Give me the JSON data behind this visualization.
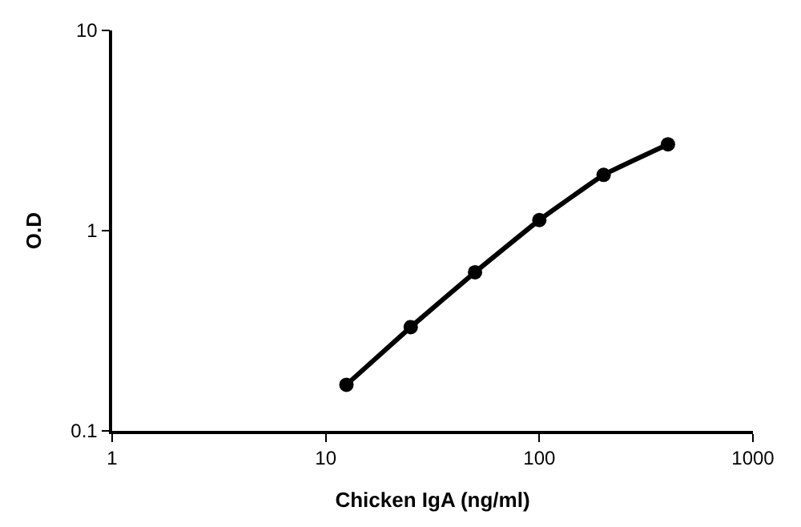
{
  "chart_data": {
    "type": "line",
    "xlabel": "Chicken IgA (ng/ml)",
    "ylabel": "O.D",
    "x": [
      12.5,
      25,
      50,
      100,
      200,
      400
    ],
    "series": [
      {
        "color": "#000000",
        "values": [
          0.17,
          0.33,
          0.62,
          1.13,
          1.9,
          2.7
        ]
      }
    ],
    "log": "xy",
    "xlim": [
      1,
      1000
    ],
    "ylim": [
      0.1,
      10
    ],
    "xticks": [
      1,
      10,
      100,
      1000
    ],
    "yticks": [
      0.1,
      1,
      10
    ],
    "legend": false,
    "marker": "circle",
    "line_style": "solid"
  }
}
